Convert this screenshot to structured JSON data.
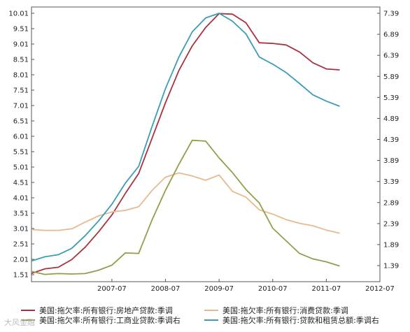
{
  "chart_data": {
    "type": "line",
    "title": "",
    "left_axis": {
      "ticks": [
        "10.01",
        "9.51",
        "9.01",
        "8.51",
        "8.01",
        "7.51",
        "7.01",
        "6.51",
        "6.01",
        "5.51",
        "5.01",
        "4.51",
        "4.01",
        "3.51",
        "3.01",
        "2.51",
        "2.01",
        "1.51"
      ],
      "range": [
        1.51,
        10.01
      ]
    },
    "right_axis": {
      "ticks": [
        "7.39",
        "6.89",
        "6.39",
        "5.89",
        "5.39",
        "4.89",
        "4.39",
        "3.89",
        "3.39",
        "2.89",
        "2.39",
        "1.89",
        "1.39"
      ],
      "range": [
        1.09,
        7.39
      ]
    },
    "x_axis": {
      "ticks": [
        "2007-07",
        "2008-07",
        "2009-07",
        "2010-07",
        "2011-07",
        "2012-07"
      ],
      "range": [
        2006.0,
        2012.5
      ]
    },
    "series": [
      {
        "name": "美国:拖欠率:所有银行:房地产贷款:季调",
        "axis": "left",
        "color": "#a8323e",
        "points": [
          [
            2006.0,
            1.55
          ],
          [
            2006.25,
            1.7
          ],
          [
            2006.5,
            1.75
          ],
          [
            2006.75,
            2.0
          ],
          [
            2007.0,
            2.4
          ],
          [
            2007.25,
            2.9
          ],
          [
            2007.5,
            3.45
          ],
          [
            2007.75,
            4.15
          ],
          [
            2008.0,
            4.8
          ],
          [
            2008.25,
            5.95
          ],
          [
            2008.5,
            7.1
          ],
          [
            2008.75,
            8.15
          ],
          [
            2009.0,
            8.95
          ],
          [
            2009.25,
            9.55
          ],
          [
            2009.5,
            10.0
          ],
          [
            2009.75,
            9.98
          ],
          [
            2010.0,
            9.7
          ],
          [
            2010.25,
            9.05
          ],
          [
            2010.5,
            9.03
          ],
          [
            2010.75,
            8.98
          ],
          [
            2011.0,
            8.75
          ],
          [
            2011.25,
            8.4
          ],
          [
            2011.5,
            8.2
          ],
          [
            2011.75,
            8.17
          ]
        ]
      },
      {
        "name": "美国:拖欠率:所有银行:消费贷款:季调",
        "axis": "left",
        "color": "#e8b98e",
        "points": [
          [
            2006.0,
            2.98
          ],
          [
            2006.25,
            2.95
          ],
          [
            2006.5,
            2.95
          ],
          [
            2006.75,
            3.0
          ],
          [
            2007.0,
            3.22
          ],
          [
            2007.25,
            3.42
          ],
          [
            2007.5,
            3.55
          ],
          [
            2007.75,
            3.6
          ],
          [
            2008.0,
            3.72
          ],
          [
            2008.25,
            4.25
          ],
          [
            2008.5,
            4.68
          ],
          [
            2008.75,
            4.82
          ],
          [
            2009.0,
            4.72
          ],
          [
            2009.25,
            4.58
          ],
          [
            2009.5,
            4.75
          ],
          [
            2009.75,
            4.22
          ],
          [
            2010.0,
            4.03
          ],
          [
            2010.25,
            3.62
          ],
          [
            2010.5,
            3.48
          ],
          [
            2010.75,
            3.3
          ],
          [
            2011.0,
            3.18
          ],
          [
            2011.25,
            3.1
          ],
          [
            2011.5,
            2.96
          ],
          [
            2011.75,
            2.86
          ]
        ]
      },
      {
        "name": "美国:拖欠率:所有银行:工商业贷款:季调右",
        "axis": "right",
        "color": "#8fa04a",
        "points": [
          [
            2006.0,
            1.25
          ],
          [
            2006.25,
            1.18
          ],
          [
            2006.5,
            1.2
          ],
          [
            2006.75,
            1.19
          ],
          [
            2007.0,
            1.2
          ],
          [
            2007.25,
            1.28
          ],
          [
            2007.5,
            1.4
          ],
          [
            2007.75,
            1.69
          ],
          [
            2008.0,
            1.68
          ],
          [
            2008.25,
            2.48
          ],
          [
            2008.5,
            3.18
          ],
          [
            2008.75,
            3.8
          ],
          [
            2009.0,
            4.37
          ],
          [
            2009.25,
            4.35
          ],
          [
            2009.5,
            3.95
          ],
          [
            2009.75,
            3.6
          ],
          [
            2010.0,
            3.2
          ],
          [
            2010.25,
            2.88
          ],
          [
            2010.5,
            2.28
          ],
          [
            2010.75,
            1.98
          ],
          [
            2011.0,
            1.68
          ],
          [
            2011.25,
            1.55
          ],
          [
            2011.5,
            1.48
          ],
          [
            2011.75,
            1.38
          ]
        ]
      },
      {
        "name": "美国:拖欠率:所有银行:贷款和租赁总额:季调右",
        "axis": "right",
        "color": "#3a9db5",
        "points": [
          [
            2006.0,
            1.5
          ],
          [
            2006.25,
            1.6
          ],
          [
            2006.5,
            1.65
          ],
          [
            2006.75,
            1.8
          ],
          [
            2007.0,
            2.1
          ],
          [
            2007.25,
            2.45
          ],
          [
            2007.5,
            2.85
          ],
          [
            2007.75,
            3.35
          ],
          [
            2008.0,
            3.75
          ],
          [
            2008.25,
            4.7
          ],
          [
            2008.5,
            5.6
          ],
          [
            2008.75,
            6.35
          ],
          [
            2009.0,
            6.95
          ],
          [
            2009.25,
            7.28
          ],
          [
            2009.5,
            7.39
          ],
          [
            2009.75,
            7.2
          ],
          [
            2010.0,
            6.9
          ],
          [
            2010.25,
            6.35
          ],
          [
            2010.5,
            6.18
          ],
          [
            2010.75,
            5.98
          ],
          [
            2011.0,
            5.72
          ],
          [
            2011.25,
            5.45
          ],
          [
            2011.5,
            5.3
          ],
          [
            2011.75,
            5.18
          ]
        ]
      }
    ],
    "legend_placement": "bottom",
    "grid": false
  },
  "watermark": "大风金融"
}
